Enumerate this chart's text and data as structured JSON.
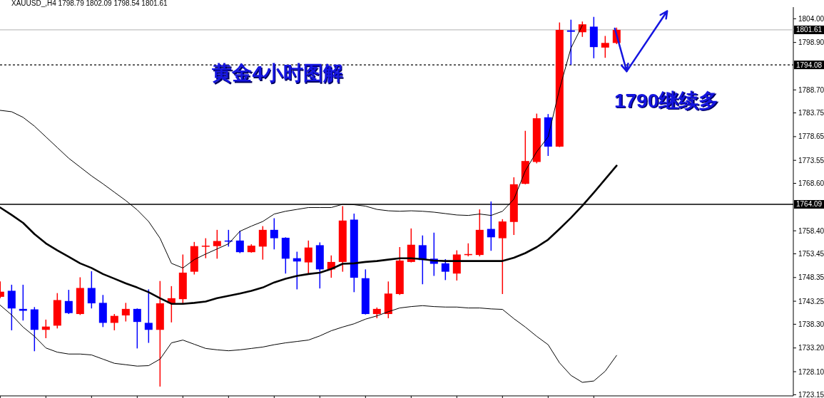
{
  "chart_data": {
    "type": "candlestick",
    "title": "XAUUSD_,H4  1798.79 1802.09 1798.54 1801.61",
    "categories": [
      null,
      null,
      null,
      null,
      null,
      null,
      null,
      null,
      null,
      null,
      null,
      null,
      null,
      null,
      null,
      null,
      null,
      null,
      null,
      null,
      null,
      null,
      null,
      null,
      null,
      null,
      null,
      null,
      null,
      null,
      null,
      null,
      null,
      null,
      null,
      null,
      null,
      null,
      null,
      null,
      null,
      null,
      null,
      null,
      null,
      null,
      null,
      null,
      null,
      null,
      null,
      null,
      null,
      null,
      null
    ],
    "ohlc": [
      [
        1744.2,
        1747.5,
        1743.9,
        1745.3
      ],
      [
        1745.5,
        1746.8,
        1737.0,
        1741.7
      ],
      [
        1741.6,
        1746.8,
        1739.1,
        1741.2
      ],
      [
        1741.5,
        1742.0,
        1732.5,
        1737.1
      ],
      [
        1737.1,
        1739.3,
        1735.3,
        1737.8
      ],
      [
        1738.0,
        1745.0,
        1737.4,
        1743.5
      ],
      [
        1743.3,
        1745.7,
        1740.5,
        1740.7
      ],
      [
        1740.5,
        1748.4,
        1740.3,
        1746.1
      ],
      [
        1746.1,
        1749.7,
        1741.7,
        1742.8
      ],
      [
        1742.9,
        1744.6,
        1737.7,
        1738.6
      ],
      [
        1738.6,
        1740.5,
        1737.0,
        1740.1
      ],
      [
        1740.2,
        1742.9,
        1738.9,
        1741.6
      ],
      [
        1741.6,
        1741.7,
        1733.1,
        1738.8
      ],
      [
        1738.6,
        1745.8,
        1734.3,
        1737.1
      ],
      [
        1737.1,
        1747.6,
        1724.9,
        1742.8
      ],
      [
        1742.8,
        1746.5,
        1738.7,
        1743.9
      ],
      [
        1743.7,
        1753.3,
        1742.5,
        1749.4
      ],
      [
        1749.6,
        1756.0,
        1749.0,
        1755.1
      ],
      [
        1755.0,
        1756.8,
        1752.5,
        1755.2
      ],
      [
        1755.1,
        1758.6,
        1752.4,
        1756.2
      ],
      [
        1756.3,
        1758.6,
        1755.0,
        1756.1
      ],
      [
        1756.3,
        1758.4,
        1753.6,
        1753.8
      ],
      [
        1753.8,
        1755.5,
        1753.7,
        1755.2
      ],
      [
        1755.0,
        1759.4,
        1752.2,
        1758.6
      ],
      [
        1758.6,
        1761.1,
        1754.4,
        1756.8
      ],
      [
        1756.9,
        1757.0,
        1749.2,
        1752.4
      ],
      [
        1752.5,
        1753.9,
        1745.8,
        1751.8
      ],
      [
        1751.6,
        1756.3,
        1749.2,
        1754.8
      ],
      [
        1755.3,
        1755.9,
        1746.0,
        1750.1
      ],
      [
        1750.1,
        1753.1,
        1748.3,
        1751.7
      ],
      [
        1751.7,
        1763.7,
        1749.6,
        1760.6
      ],
      [
        1760.8,
        1762.1,
        1745.2,
        1748.3
      ],
      [
        1748.2,
        1750.1,
        1740.4,
        1740.5
      ],
      [
        1740.5,
        1741.9,
        1739.6,
        1741.6
      ],
      [
        1740.5,
        1747.5,
        1739.6,
        1744.9
      ],
      [
        1744.8,
        1754.9,
        1744.6,
        1752.0
      ],
      [
        1751.7,
        1758.9,
        1751.6,
        1755.4
      ],
      [
        1755.3,
        1757.4,
        1746.9,
        1752.1
      ],
      [
        1752.4,
        1758.0,
        1748.7,
        1751.3
      ],
      [
        1751.4,
        1752.3,
        1747.8,
        1749.6
      ],
      [
        1749.2,
        1754.2,
        1747.7,
        1753.3
      ],
      [
        1753.2,
        1755.7,
        1752.9,
        1753.4
      ],
      [
        1753.2,
        1763.0,
        1752.9,
        1758.6
      ],
      [
        1758.8,
        1764.7,
        1754.1,
        1757.0
      ],
      [
        1756.8,
        1760.9,
        1744.8,
        1760.4
      ],
      [
        1760.3,
        1769.9,
        1757.5,
        1768.4
      ],
      [
        1768.5,
        1779.9,
        1768.4,
        1773.4
      ],
      [
        1773.2,
        1783.6,
        1772.9,
        1782.6
      ],
      [
        1782.8,
        1783.5,
        1774.5,
        1776.5
      ],
      [
        1776.5,
        1803.2,
        1776.4,
        1801.6
      ],
      [
        1801.5,
        1803.8,
        1794.1,
        1801.2
      ],
      [
        1801.1,
        1803.4,
        1800.1,
        1802.8
      ],
      [
        1802.3,
        1804.4,
        1795.5,
        1797.9
      ],
      [
        1797.8,
        1800.3,
        1795.6,
        1798.8
      ],
      [
        1798.79,
        1802.09,
        1798.54,
        1801.61
      ]
    ],
    "colors": [
      "#ff0000",
      "#0000ff",
      "#0000ff",
      "#0000ff",
      "#ff0000",
      "#ff0000",
      "#0000ff",
      "#ff0000",
      "#0000ff",
      "#0000ff",
      "#ff0000",
      "#ff0000",
      "#0000ff",
      "#0000ff",
      "#ff0000",
      "#ff0000",
      "#ff0000",
      "#ff0000",
      "#ff0000",
      "#ff0000",
      "#0000ff",
      "#0000ff",
      "#ff0000",
      "#ff0000",
      "#0000ff",
      "#0000ff",
      "#0000ff",
      "#ff0000",
      "#0000ff",
      "#ff0000",
      "#ff0000",
      "#0000ff",
      "#0000ff",
      "#ff0000",
      "#ff0000",
      "#ff0000",
      "#ff0000",
      "#0000ff",
      "#0000ff",
      "#0000ff",
      "#ff0000",
      "#ff0000",
      "#ff0000",
      "#0000ff",
      "#ff0000",
      "#ff0000",
      "#ff0000",
      "#ff0000",
      "#0000ff",
      "#ff0000",
      "#0000ff",
      "#ff0000",
      "#0000ff",
      "#ff0000",
      "#ff0000"
    ],
    "series": [
      {
        "type": "line",
        "color": "#000000",
        "values": [
          1784.3,
          1784.0,
          1782.8,
          1780.9,
          1778.6,
          1776.3,
          1774.0,
          1772.1,
          1770.2,
          1768.5,
          1766.7,
          1764.9,
          1762.9,
          1760.4,
          1756.8,
          1751.4,
          1750.4,
          1752.2,
          1753.4,
          1754.5,
          1755.6,
          1758.3,
          1759.4,
          1760.4,
          1762.0,
          1762.6,
          1763.0,
          1763.4,
          1763.4,
          1763.4,
          1764.1,
          1764.0,
          1763.7,
          1763.0,
          1762.7,
          1762.6,
          1762.7,
          1762.6,
          1762.4,
          1762.1,
          1761.8,
          1761.7,
          1762.0,
          1761.7,
          1762.6,
          1765.2,
          1771.3,
          1775.4,
          1778.6,
          1788.9,
          1797.7,
          1802.6,
          null,
          null,
          null
        ]
      },
      {
        "type": "line",
        "color": "#000000",
        "values": [
          1763.4,
          1761.8,
          1760.1,
          1757.7,
          1755.7,
          1754.2,
          1752.8,
          1751.4,
          1750.4,
          1749.1,
          1748.1,
          1747.1,
          1746.2,
          1745.2,
          1743.9,
          1742.7,
          1742.7,
          1742.9,
          1743.2,
          1743.9,
          1744.4,
          1744.9,
          1745.5,
          1746.2,
          1747.3,
          1748.1,
          1748.7,
          1749.1,
          1749.4,
          1750.2,
          1751.3,
          1751.4,
          1751.7,
          1751.9,
          1752.2,
          1752.5,
          1752.5,
          1752.3,
          1752.0,
          1751.9,
          1751.9,
          1751.9,
          1751.9,
          1751.9,
          1751.9,
          1752.6,
          1753.6,
          1754.9,
          1756.5,
          1758.8,
          1761.2,
          1763.8,
          1766.6,
          1769.5,
          1772.4
        ]
      },
      {
        "type": "line",
        "color": "#000000",
        "values": [
          1742.4,
          1740.3,
          1737.7,
          1735.7,
          1733.2,
          1732.3,
          1731.9,
          1731.9,
          1731.7,
          1730.8,
          1729.9,
          1729.6,
          1729.3,
          1729.4,
          1730.8,
          1734.3,
          1734.9,
          1734.0,
          1733.1,
          1732.8,
          1732.6,
          1732.8,
          1733.1,
          1733.4,
          1733.9,
          1734.3,
          1734.6,
          1734.9,
          1735.8,
          1736.9,
          1737.7,
          1738.4,
          1739.4,
          1740.1,
          1741.0,
          1741.8,
          1742.1,
          1742.3,
          1742.1,
          1742.0,
          1742.0,
          1741.8,
          1741.8,
          1741.6,
          1741.5,
          1739.5,
          1737.7,
          1735.7,
          1733.9,
          1730.0,
          1727.3,
          1725.8,
          1726.1,
          1728.2,
          1731.6
        ]
      }
    ],
    "ylim": [
      1722.9,
      1806.5
    ],
    "yticks": [
      {
        "value": 1804.0,
        "label": "1804.00"
      },
      {
        "value": 1798.9,
        "label": "1798.90"
      },
      {
        "value": 1788.7,
        "label": "1788.70"
      },
      {
        "value": 1783.75,
        "label": "1783.75"
      },
      {
        "value": 1778.65,
        "label": "1778.65"
      },
      {
        "value": 1773.55,
        "label": "1773.55"
      },
      {
        "value": 1768.6,
        "label": "1768.60"
      },
      {
        "value": 1758.4,
        "label": "1758.40"
      },
      {
        "value": 1753.45,
        "label": "1753.45"
      },
      {
        "value": 1748.35,
        "label": "1748.35"
      },
      {
        "value": 1743.25,
        "label": "1743.25"
      },
      {
        "value": 1738.3,
        "label": "1738.30"
      },
      {
        "value": 1733.2,
        "label": "1733.20"
      },
      {
        "value": 1728.1,
        "label": "1728.10"
      },
      {
        "value": 1723.15,
        "label": "1723.15"
      }
    ],
    "ref_lines": [
      {
        "axis": "y",
        "value": 1801.61,
        "label": "1801.61",
        "color": "#c0c0c0",
        "line_style": "solid"
      },
      {
        "axis": "y",
        "value": 1794.08,
        "label": "1794.08",
        "color": "#000000",
        "line_style": "dashed"
      },
      {
        "axis": "y",
        "value": 1764.09,
        "label": "1764.09",
        "color": "#000000",
        "line_style": "solid"
      }
    ],
    "annotations": [
      "黄金4小时图解",
      "1790继续多"
    ],
    "tick_labels": "y"
  }
}
